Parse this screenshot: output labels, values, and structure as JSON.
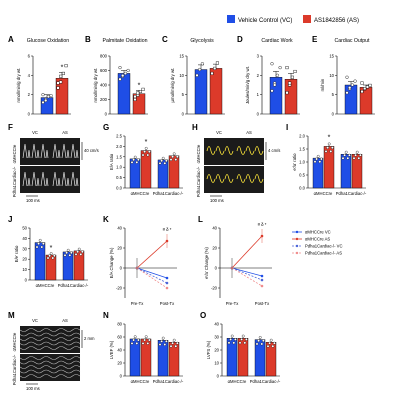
{
  "legend": {
    "vc": "Vehicle Control (VC)",
    "as": "AS1842856 (AS)"
  },
  "colors": {
    "vc": "#1f4ee6",
    "as": "#dc3a2a",
    "dashed_vc": "#4c64d8",
    "dashed_as": "#f08c8c"
  },
  "top_panels": [
    {
      "label": "A",
      "title": "Glucose Oxidation",
      "ylabel": "nmol/min/g dry wt.",
      "ymax": 6,
      "ticks": [
        "0",
        "2",
        "4",
        "6"
      ],
      "vc": 1.7,
      "as": 3.7,
      "vc_err": 0.3,
      "as_err": 0.6,
      "sig": "*",
      "vc_pts": [
        1.2,
        1.5,
        1.8,
        1.9,
        2.0,
        1.4
      ],
      "as_pts": [
        2.7,
        3.3,
        4.2,
        5.0,
        3.2,
        3.9
      ]
    },
    {
      "label": "B",
      "title": "Palmitate Oxidation",
      "ylabel": "nmol/min/g dry wt.",
      "ymax": 800,
      "ticks": [
        "0",
        "200",
        "400",
        "600",
        "800"
      ],
      "vc": 560,
      "as": 280,
      "vc_err": 40,
      "as_err": 45,
      "sig": "*",
      "vc_pts": [
        480,
        520,
        560,
        600,
        640,
        530
      ],
      "as_pts": [
        200,
        260,
        310,
        340,
        240,
        290
      ]
    },
    {
      "label": "C",
      "title": "Glycolysis",
      "ylabel": "µmol/min/g dry wt.",
      "ymax": 15,
      "ticks": [
        "0",
        "5",
        "10",
        "15"
      ],
      "vc": 11.5,
      "as": 11.8,
      "vc_err": 1.2,
      "as_err": 1.1,
      "sig": "",
      "vc_pts": [
        10,
        11.5,
        13
      ],
      "as_pts": [
        10.5,
        11.8,
        13.2
      ]
    },
    {
      "label": "D",
      "title": "Cardiac Work",
      "ylabel": "Joules/min/g dry wt.",
      "ymax": 3,
      "ticks": [
        "0",
        "1",
        "2",
        "3"
      ],
      "vc": 1.9,
      "as": 1.8,
      "vc_err": 0.3,
      "as_err": 0.3,
      "sig": "",
      "vc_pts": [
        1.2,
        1.6,
        2.0,
        2.4,
        2.6,
        1.5
      ],
      "as_pts": [
        1.1,
        1.5,
        1.9,
        2.2,
        2.4,
        1.6
      ]
    },
    {
      "label": "E",
      "title": "Cardiac Output",
      "ylabel": "ml/min",
      "ymax": 15,
      "ticks": [
        "0",
        "5",
        "10",
        "15"
      ],
      "vc": 7.5,
      "as": 6.9,
      "vc_err": 0.9,
      "as_err": 0.6,
      "sig": "",
      "vc_pts": [
        5.5,
        6.5,
        7.5,
        8.5,
        9.5,
        6.8
      ],
      "as_pts": [
        5.8,
        6.5,
        7.0,
        7.4,
        8.0,
        6.6
      ]
    }
  ],
  "echo": {
    "F": {
      "label": "F",
      "vc": "VC",
      "as": "AS",
      "row1": "αMHCCre",
      "row2": "Pdha1Cardiac-/-",
      "scale_v": "40 cm/s",
      "scale_h": "100 ms"
    },
    "H": {
      "label": "H",
      "vc": "VC",
      "as": "AS",
      "row1": "αMHCCre",
      "row2": "Pdha1Cardiac-/-",
      "scale_v": "4 cm/s",
      "scale_h": "100 ms"
    },
    "M": {
      "label": "M",
      "vc": "VC",
      "as": "AS",
      "row1": "αMHCCre",
      "row2": "Pdha1Cardiac-/-",
      "scale_v": "2 mm",
      "scale_h": "100 ms"
    }
  },
  "group_panels": {
    "G": {
      "label": "G",
      "ylabel": "E/A ratio",
      "ymax": 2.5,
      "ticks": [
        "0.0",
        "0.5",
        "1.0",
        "1.5",
        "2.0",
        "2.5"
      ],
      "groups": [
        "αMHCCre",
        "Pdha1Cardiac-/-"
      ],
      "vc": [
        1.4,
        1.35
      ],
      "as": [
        1.8,
        1.55
      ],
      "sig": [
        "*",
        ""
      ]
    },
    "I": {
      "label": "I",
      "ylabel": "e'/a' ratio",
      "ymax": 2.0,
      "ticks": [
        "0.0",
        "0.5",
        "1.0",
        "1.5",
        "2.0"
      ],
      "groups": [
        "αMHCCre",
        "Pdha1Cardiac-/-"
      ],
      "vc": [
        1.15,
        1.3
      ],
      "as": [
        1.6,
        1.3
      ],
      "sig": [
        "*",
        ""
      ]
    },
    "J": {
      "label": "J",
      "ylabel": "E/e' ratio",
      "ymax": 50,
      "ticks": [
        "0",
        "10",
        "20",
        "30",
        "40",
        "50"
      ],
      "groups": [
        "αMHCCre",
        "Pdha1Cardiac-/-"
      ],
      "vc": [
        36,
        27
      ],
      "as": [
        24,
        28
      ],
      "sig": [
        "*",
        ""
      ]
    },
    "N": {
      "label": "N",
      "ylabel": "LVEF (%)",
      "ymax": 80,
      "ticks": [
        "0",
        "20",
        "40",
        "60",
        "80"
      ],
      "groups": [
        "αMHCCre",
        "Pdha1Cardiac-/-"
      ],
      "vc": [
        57,
        55
      ],
      "as": [
        57,
        52
      ],
      "sig": [
        "",
        ""
      ]
    },
    "O": {
      "label": "O",
      "ylabel": "LVFS (%)",
      "ymax": 40,
      "ticks": [
        "0",
        "10",
        "20",
        "30",
        "40"
      ],
      "groups": [
        "αMHCCre",
        "Pdha1Cardiac-/-"
      ],
      "vc": [
        29,
        28
      ],
      "as": [
        29,
        26
      ],
      "sig": [
        "",
        ""
      ]
    }
  },
  "line_panels": {
    "K": {
      "label": "K",
      "ylabel": "E/A Change (%)",
      "ymin": -30,
      "ymax": 40,
      "ticks": [
        "-20",
        "0",
        "20",
        "40"
      ],
      "x": [
        "Pre-Tx",
        "Post-Tx"
      ],
      "series": {
        "vc": [
          0,
          -10
        ],
        "as": [
          0,
          27
        ],
        "vc_ko": [
          0,
          -15
        ],
        "as_ko": [
          0,
          -20
        ]
      },
      "sig": "# δ *"
    },
    "L": {
      "label": "L",
      "ylabel": "e'/a' Change (%)",
      "ymin": -30,
      "ymax": 40,
      "ticks": [
        "-20",
        "0",
        "20",
        "40"
      ],
      "x": [
        "Pre-Tx",
        "Post-Tx"
      ],
      "series": {
        "vc": [
          0,
          -8
        ],
        "as": [
          0,
          32
        ],
        "vc_ko": [
          0,
          -12
        ],
        "as_ko": [
          0,
          -18
        ]
      },
      "sig": "# δ *"
    }
  },
  "kl_legend": [
    "αMHCCre VC",
    "αMHCCre AS",
    "Pdha1Cardiac-/- VC",
    "Pdha1Cardiac-/- AS"
  ]
}
